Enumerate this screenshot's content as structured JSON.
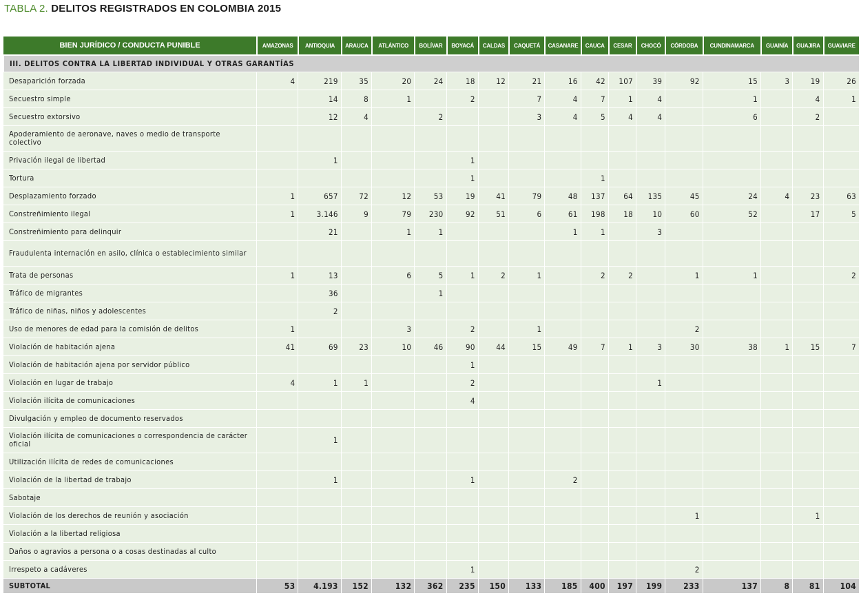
{
  "title": {
    "label": "TABLA 2.",
    "text": "DELITOS REGISTRADOS EN COLOMBIA 2015"
  },
  "columns": [
    "BIEN JURÍDICO / CONDUCTA PUNIBLE",
    "AMAZONAS",
    "ANTIOQUIA",
    "ARAUCA",
    "ATLÁNTICO",
    "BOLÍVAR",
    "BOYACÁ",
    "CALDAS",
    "CAQUETÁ",
    "CASANARE",
    "CAUCA",
    "CESAR",
    "CHOCÓ",
    "CÓRDOBA",
    "CUNDINAMARCA",
    "GUAINÍA",
    "GUAJIRA",
    "GUAVIARE"
  ],
  "section": "III. DELITOS CONTRA LA LIBERTAD INDIVIDUAL Y OTRAS GARANTÍAS",
  "rows": [
    {
      "label": "Desaparición forzada",
      "values": [
        "4",
        "219",
        "35",
        "20",
        "24",
        "18",
        "12",
        "21",
        "16",
        "42",
        "107",
        "39",
        "92",
        "15",
        "3",
        "19",
        "26"
      ]
    },
    {
      "label": "Secuestro simple",
      "values": [
        "",
        "14",
        "8",
        "1",
        "",
        "2",
        "",
        "7",
        "4",
        "7",
        "1",
        "4",
        "",
        "1",
        "",
        "4",
        "1"
      ]
    },
    {
      "label": "Secuestro extorsivo",
      "values": [
        "",
        "12",
        "4",
        "",
        "2",
        "",
        "",
        "3",
        "4",
        "5",
        "4",
        "4",
        "",
        "6",
        "",
        "2",
        ""
      ]
    },
    {
      "label": "Apoderamiento de aeronave, naves o medio de transporte colectivo",
      "tall": true,
      "values": [
        "",
        "",
        "",
        "",
        "",
        "",
        "",
        "",
        "",
        "",
        "",
        "",
        "",
        "",
        "",
        "",
        ""
      ]
    },
    {
      "label": "Privación ilegal de libertad",
      "values": [
        "",
        "1",
        "",
        "",
        "",
        "1",
        "",
        "",
        "",
        "",
        "",
        "",
        "",
        "",
        "",
        "",
        ""
      ]
    },
    {
      "label": "Tortura",
      "values": [
        "",
        "",
        "",
        "",
        "",
        "1",
        "",
        "",
        "",
        "1",
        "",
        "",
        "",
        "",
        "",
        "",
        ""
      ]
    },
    {
      "label": "Desplazamiento forzado",
      "values": [
        "1",
        "657",
        "72",
        "12",
        "53",
        "19",
        "41",
        "79",
        "48",
        "137",
        "64",
        "135",
        "45",
        "24",
        "4",
        "23",
        "63"
      ]
    },
    {
      "label": "Constreñimiento ilegal",
      "values": [
        "1",
        "3.146",
        "9",
        "79",
        "230",
        "92",
        "51",
        "6",
        "61",
        "198",
        "18",
        "10",
        "60",
        "52",
        "",
        "17",
        "5"
      ]
    },
    {
      "label": "Constreñimiento para delinquir",
      "values": [
        "",
        "21",
        "",
        "1",
        "1",
        "",
        "",
        "",
        "1",
        "1",
        "",
        "3",
        "",
        "",
        "",
        "",
        ""
      ]
    },
    {
      "label": "Fraudulenta internación en asilo, clínica o establecimiento similar",
      "tall": true,
      "values": [
        "",
        "",
        "",
        "",
        "",
        "",
        "",
        "",
        "",
        "",
        "",
        "",
        "",
        "",
        "",
        "",
        ""
      ]
    },
    {
      "label": "Trata de personas",
      "values": [
        "1",
        "13",
        "",
        "6",
        "5",
        "1",
        "2",
        "1",
        "",
        "2",
        "2",
        "",
        "1",
        "1",
        "",
        "",
        "2"
      ]
    },
    {
      "label": "Tráfico de migrantes",
      "values": [
        "",
        "36",
        "",
        "",
        "1",
        "",
        "",
        "",
        "",
        "",
        "",
        "",
        "",
        "",
        "",
        "",
        ""
      ]
    },
    {
      "label": "Tráfico de niñas, niños y adolescentes",
      "values": [
        "",
        "2",
        "",
        "",
        "",
        "",
        "",
        "",
        "",
        "",
        "",
        "",
        "",
        "",
        "",
        "",
        ""
      ]
    },
    {
      "label": "Uso de menores de edad para la comisión de delitos",
      "values": [
        "1",
        "",
        "",
        "3",
        "",
        "2",
        "",
        "1",
        "",
        "",
        "",
        "",
        "2",
        "",
        "",
        "",
        ""
      ]
    },
    {
      "label": "Violación de habitación ajena",
      "values": [
        "41",
        "69",
        "23",
        "10",
        "46",
        "90",
        "44",
        "15",
        "49",
        "7",
        "1",
        "3",
        "30",
        "38",
        "1",
        "15",
        "7"
      ]
    },
    {
      "label": "Violación de habitación ajena por servidor público",
      "values": [
        "",
        "",
        "",
        "",
        "",
        "1",
        "",
        "",
        "",
        "",
        "",
        "",
        "",
        "",
        "",
        "",
        ""
      ]
    },
    {
      "label": "Violación en lugar de trabajo",
      "values": [
        "4",
        "1",
        "1",
        "",
        "",
        "2",
        "",
        "",
        "",
        "",
        "",
        "1",
        "",
        "",
        "",
        "",
        ""
      ]
    },
    {
      "label": "Violación ilícita de comunicaciones",
      "values": [
        "",
        "",
        "",
        "",
        "",
        "4",
        "",
        "",
        "",
        "",
        "",
        "",
        "",
        "",
        "",
        "",
        ""
      ]
    },
    {
      "label": "Divulgación y empleo de documento reservados",
      "values": [
        "",
        "",
        "",
        "",
        "",
        "",
        "",
        "",
        "",
        "",
        "",
        "",
        "",
        "",
        "",
        "",
        ""
      ]
    },
    {
      "label": "Violación ilícita de comunicaciones o correspondencia de carácter oficial",
      "tall": true,
      "values": [
        "",
        "1",
        "",
        "",
        "",
        "",
        "",
        "",
        "",
        "",
        "",
        "",
        "",
        "",
        "",
        "",
        ""
      ]
    },
    {
      "label": "Utilización ilícita de redes de comunicaciones",
      "values": [
        "",
        "",
        "",
        "",
        "",
        "",
        "",
        "",
        "",
        "",
        "",
        "",
        "",
        "",
        "",
        "",
        ""
      ]
    },
    {
      "label": "Violación de la libertad de trabajo",
      "values": [
        "",
        "1",
        "",
        "",
        "",
        "1",
        "",
        "",
        "2",
        "",
        "",
        "",
        "",
        "",
        "",
        "",
        ""
      ]
    },
    {
      "label": "Sabotaje",
      "values": [
        "",
        "",
        "",
        "",
        "",
        "",
        "",
        "",
        "",
        "",
        "",
        "",
        "",
        "",
        "",
        "",
        ""
      ]
    },
    {
      "label": "Violación de los derechos de reunión y asociación",
      "values": [
        "",
        "",
        "",
        "",
        "",
        "",
        "",
        "",
        "",
        "",
        "",
        "",
        "1",
        "",
        "",
        "1",
        ""
      ]
    },
    {
      "label": "Violación a la libertad religiosa",
      "values": [
        "",
        "",
        "",
        "",
        "",
        "",
        "",
        "",
        "",
        "",
        "",
        "",
        "",
        "",
        "",
        "",
        ""
      ]
    },
    {
      "label": "Daños o agravios a persona o a cosas destinadas al culto",
      "values": [
        "",
        "",
        "",
        "",
        "",
        "",
        "",
        "",
        "",
        "",
        "",
        "",
        "",
        "",
        "",
        "",
        ""
      ]
    },
    {
      "label": "Irrespeto a cadáveres",
      "values": [
        "",
        "",
        "",
        "",
        "",
        "1",
        "",
        "",
        "",
        "",
        "",
        "",
        "2",
        "",
        "",
        "",
        ""
      ]
    }
  ],
  "subtotal": {
    "label": "SUBTOTAL",
    "values": [
      "53",
      "4.193",
      "152",
      "132",
      "362",
      "235",
      "150",
      "133",
      "185",
      "400",
      "197",
      "199",
      "233",
      "137",
      "8",
      "81",
      "104"
    ]
  }
}
